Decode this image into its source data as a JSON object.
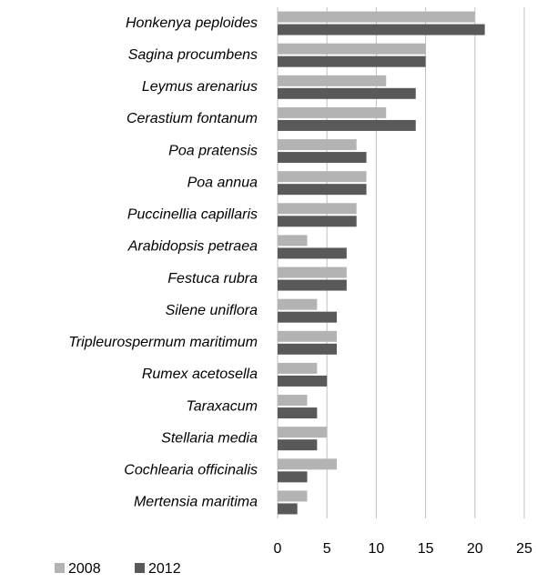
{
  "chart_data": {
    "type": "bar",
    "orientation": "horizontal",
    "categories": [
      "Honkenya peploides",
      "Sagina procumbens",
      "Leymus arenarius",
      "Cerastium fontanum",
      "Poa pratensis",
      "Poa annua",
      "Puccinellia capillaris",
      "Arabidopsis petraea",
      "Festuca rubra",
      "Silene uniflora",
      "Tripleurospermum maritimum",
      "Rumex acetosella",
      "Taraxacum",
      "Stellaria media",
      "Cochlearia officinalis",
      "Mertensia maritima"
    ],
    "series": [
      {
        "name": "2008",
        "color": "#b3b3b3",
        "values": [
          20,
          15,
          11,
          11,
          8,
          9,
          8,
          3,
          7,
          4,
          6,
          4,
          3,
          5,
          6,
          3
        ]
      },
      {
        "name": "2012",
        "color": "#595959",
        "values": [
          21,
          15,
          14,
          14,
          9,
          9,
          8,
          7,
          7,
          6,
          6,
          5,
          4,
          4,
          3,
          2
        ]
      }
    ],
    "xlim": [
      0,
      25
    ],
    "xticks": [
      0,
      5,
      10,
      15,
      20,
      25
    ],
    "grid": true,
    "legend": "bottom-left"
  }
}
